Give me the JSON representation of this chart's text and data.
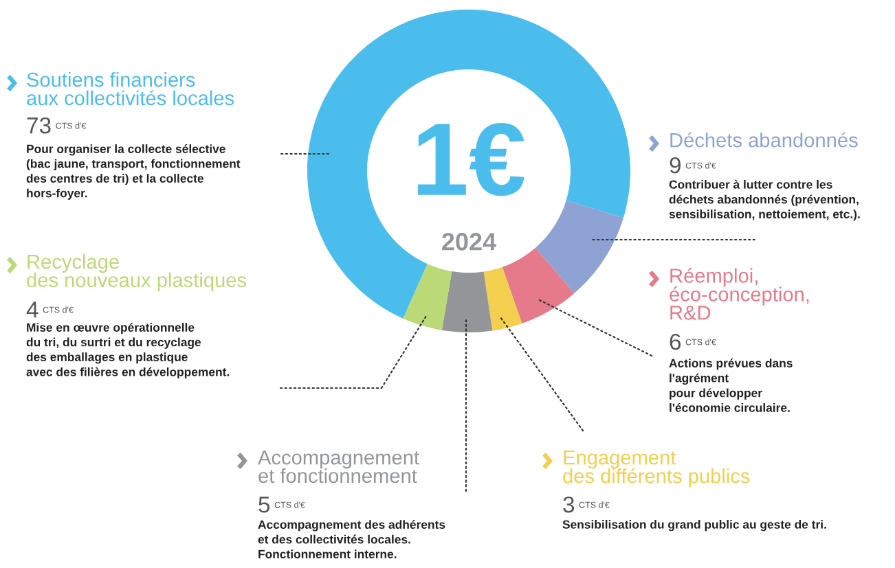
{
  "chart_data": {
    "type": "donut",
    "title": "1€",
    "subtitle": "2024",
    "categories": [
      "Soutiens financiers\naux collectivités locales",
      "Déchets abandonnés",
      "Réemploi,\néco-conception,\nR&D",
      "Engagement\ndes différents publics",
      "Accompagnement\net fonctionnement",
      "Recyclage\ndes nouveaux plastiques"
    ],
    "values": [
      73,
      9,
      6,
      3,
      5,
      4
    ],
    "value_labels": [
      "73",
      "9",
      "6",
      "3",
      "5",
      "4"
    ],
    "colors": [
      "#4bbdec",
      "#8ea3d4",
      "#e57a8a",
      "#f2cf4e",
      "#939598",
      "#bcd977"
    ],
    "annotations": [
      "Pour organiser la collecte sélective\n(bac jaune, transport, fonctionnement\ndes centres de tri) et la collecte\nhors-foyer.",
      "Contribuer à lutter contre les\ndéchets abandonnés (prévention,\nsensibilisation, nettoiement, etc.).",
      "Actions prévues dans\nl'agrément\npour développer\nl'économie circulaire.",
      "Sensibilisation du grand public au geste de tri.",
      "Accompagnement des adhérents\net des collectivités locales.\nFonctionnement interne.",
      "Mise en œuvre opérationnelle\ndu tri, du surtri et du recyclage\ndes emballages en plastique\navec des filières en développement.",
      "CTS d'€",
      "CTS d'€",
      "CTS d'€",
      "CTS d'€",
      "CTS d'€",
      "CTS d'€"
    ],
    "legend": "bottom left"
  }
}
